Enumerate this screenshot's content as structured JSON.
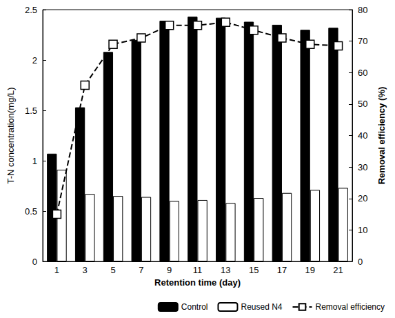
{
  "chart_data": {
    "type": "bar",
    "x_label": "Retention time (day)",
    "y_label": "T-N concentration(mg/L)",
    "y2_label": "Removal efficiency (%)",
    "categories": [
      "1",
      "3",
      "5",
      "7",
      "9",
      "11",
      "13",
      "15",
      "17",
      "19",
      "21"
    ],
    "series": [
      {
        "name": "Control",
        "type": "bar",
        "color": "#000000",
        "values": [
          1.07,
          1.53,
          2.08,
          2.2,
          2.39,
          2.43,
          2.42,
          2.38,
          2.35,
          2.3,
          2.32
        ]
      },
      {
        "name": "Reused N4",
        "type": "bar",
        "color": "#ffffff",
        "values": [
          0.91,
          0.67,
          0.65,
          0.64,
          0.6,
          0.61,
          0.58,
          0.63,
          0.68,
          0.71,
          0.73
        ]
      },
      {
        "name": "Removal efficiency",
        "type": "line",
        "axis": "y2",
        "color": "#000000",
        "marker": "square",
        "line_style": "dashed",
        "values": [
          15,
          56,
          69,
          71,
          75,
          75,
          76,
          73.5,
          71,
          69,
          68.5
        ]
      }
    ],
    "ylim": [
      0,
      2.5
    ],
    "yticks": [
      0,
      0.5,
      1,
      1.5,
      2,
      2.5
    ],
    "y2lim": [
      0,
      80
    ],
    "y2ticks": [
      0,
      10,
      20,
      30,
      40,
      50,
      60,
      70,
      80
    ],
    "grid": false,
    "legend": "lower right"
  }
}
